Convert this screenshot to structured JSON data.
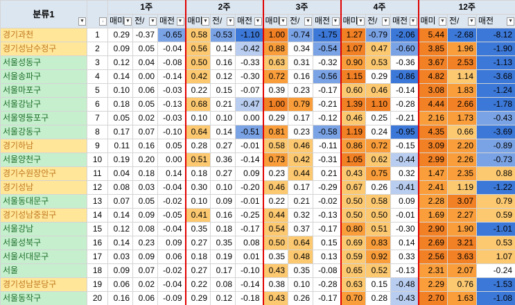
{
  "header": {
    "category_label": "분류1",
    "weeks": [
      "1주",
      "2주",
      "3주",
      "4주",
      "12주"
    ],
    "subcols": [
      "매매",
      "전세",
      "매전"
    ],
    "subcols_display": [
      "매미",
      "전/",
      "매전"
    ]
  },
  "colors": {
    "deep_orange": "#f28024",
    "orange": "#fa9e3b",
    "light_orange": "#fcc870",
    "pale_yellow": "#fde8a8",
    "deep_blue": "#3c78d8",
    "mid_blue": "#7aa3e6",
    "light_blue": "#b8cdf0",
    "header_bg": "#dce6f1",
    "yellow_name": "#ffe699",
    "green_name": "#c6efce"
  },
  "rows": [
    {
      "idx": "1",
      "name": "경기과천",
      "t": "y",
      "v": [
        "0.29",
        "-0.37",
        "-0.65",
        "0.58",
        "-0.53",
        "-1.10",
        "1.00",
        "-0.74",
        "-1.75",
        "1.27",
        "-0.79",
        "-2.06",
        "5.44",
        "-2.68",
        "-8.12"
      ]
    },
    {
      "idx": "2",
      "name": "경기성남수정구",
      "t": "y",
      "v": [
        "0.09",
        "0.05",
        "-0.04",
        "0.56",
        "0.14",
        "-0.42",
        "0.88",
        "0.34",
        "-0.54",
        "1.07",
        "0.47",
        "-0.60",
        "3.85",
        "1.96",
        "-1.90"
      ]
    },
    {
      "idx": "3",
      "name": "서울성동구",
      "t": "g",
      "v": [
        "0.12",
        "0.04",
        "-0.08",
        "0.50",
        "0.16",
        "-0.33",
        "0.63",
        "0.31",
        "-0.32",
        "0.90",
        "0.53",
        "-0.36",
        "3.67",
        "2.53",
        "-1.13"
      ]
    },
    {
      "idx": "4",
      "name": "서울송파구",
      "t": "g",
      "v": [
        "0.14",
        "0.00",
        "-0.14",
        "0.42",
        "0.12",
        "-0.30",
        "0.72",
        "0.16",
        "-0.56",
        "1.15",
        "0.29",
        "-0.86",
        "4.82",
        "1.14",
        "-3.68"
      ]
    },
    {
      "idx": "5",
      "name": "서울마포구",
      "t": "g",
      "v": [
        "0.10",
        "0.06",
        "-0.03",
        "0.22",
        "0.15",
        "-0.07",
        "0.39",
        "0.23",
        "-0.17",
        "0.60",
        "0.46",
        "-0.14",
        "3.08",
        "1.83",
        "-1.24"
      ]
    },
    {
      "idx": "6",
      "name": "서울강남구",
      "t": "g",
      "v": [
        "0.18",
        "0.05",
        "-0.13",
        "0.68",
        "0.21",
        "-0.47",
        "1.00",
        "0.79",
        "-0.21",
        "1.39",
        "1.10",
        "-0.28",
        "4.44",
        "2.66",
        "-1.78"
      ]
    },
    {
      "idx": "7",
      "name": "서울영등포구",
      "t": "g",
      "v": [
        "0.05",
        "0.02",
        "-0.03",
        "0.10",
        "0.10",
        "0.00",
        "0.29",
        "0.17",
        "-0.12",
        "0.46",
        "0.25",
        "-0.21",
        "2.16",
        "1.73",
        "-0.43"
      ]
    },
    {
      "idx": "8",
      "name": "서울강동구",
      "t": "g",
      "v": [
        "0.17",
        "0.07",
        "-0.10",
        "0.64",
        "0.14",
        "-0.51",
        "0.81",
        "0.23",
        "-0.58",
        "1.19",
        "0.24",
        "-0.95",
        "4.35",
        "0.66",
        "-3.69"
      ]
    },
    {
      "idx": "9",
      "name": "경기하남",
      "t": "y",
      "v": [
        "0.11",
        "0.16",
        "0.05",
        "0.28",
        "0.27",
        "-0.01",
        "0.58",
        "0.46",
        "-0.11",
        "0.86",
        "0.72",
        "-0.15",
        "3.09",
        "2.20",
        "-0.89"
      ]
    },
    {
      "idx": "10",
      "name": "서울양천구",
      "t": "g",
      "v": [
        "0.19",
        "0.20",
        "0.00",
        "0.51",
        "0.36",
        "-0.14",
        "0.73",
        "0.42",
        "-0.31",
        "1.05",
        "0.62",
        "-0.44",
        "2.99",
        "2.26",
        "-0.73"
      ]
    },
    {
      "idx": "11",
      "name": "경기수원장안구",
      "t": "y",
      "v": [
        "0.04",
        "0.18",
        "0.14",
        "0.18",
        "0.27",
        "0.09",
        "0.23",
        "0.44",
        "0.21",
        "0.43",
        "0.75",
        "0.32",
        "1.47",
        "2.35",
        "0.88"
      ]
    },
    {
      "idx": "12",
      "name": "경기성남",
      "t": "y",
      "v": [
        "0.08",
        "0.03",
        "-0.04",
        "0.30",
        "0.10",
        "-0.20",
        "0.46",
        "0.17",
        "-0.29",
        "0.67",
        "0.26",
        "-0.41",
        "2.41",
        "1.19",
        "-1.22"
      ]
    },
    {
      "idx": "13",
      "name": "서울동대문구",
      "t": "g",
      "v": [
        "0.07",
        "0.05",
        "-0.02",
        "0.10",
        "0.09",
        "-0.01",
        "0.22",
        "0.21",
        "-0.02",
        "0.50",
        "0.58",
        "0.09",
        "2.28",
        "3.07",
        "0.79"
      ]
    },
    {
      "idx": "14",
      "name": "경기성남중원구",
      "t": "y",
      "v": [
        "0.14",
        "0.09",
        "-0.05",
        "0.41",
        "0.16",
        "-0.25",
        "0.44",
        "0.32",
        "-0.13",
        "0.50",
        "0.50",
        "-0.01",
        "1.69",
        "2.27",
        "0.59"
      ]
    },
    {
      "idx": "15",
      "name": "서울강남",
      "t": "g",
      "v": [
        "0.12",
        "0.08",
        "-0.04",
        "0.35",
        "0.18",
        "-0.17",
        "0.54",
        "0.37",
        "-0.17",
        "0.80",
        "0.51",
        "-0.30",
        "2.90",
        "1.90",
        "-1.01"
      ]
    },
    {
      "idx": "16",
      "name": "서울성북구",
      "t": "g",
      "v": [
        "0.14",
        "0.23",
        "0.09",
        "0.27",
        "0.35",
        "0.08",
        "0.50",
        "0.64",
        "0.15",
        "0.69",
        "0.83",
        "0.14",
        "2.69",
        "3.21",
        "0.53"
      ]
    },
    {
      "idx": "17",
      "name": "서울서대문구",
      "t": "g",
      "v": [
        "0.03",
        "0.09",
        "0.06",
        "0.18",
        "0.19",
        "0.01",
        "0.35",
        "0.48",
        "0.13",
        "0.59",
        "0.92",
        "0.33",
        "2.56",
        "3.63",
        "1.07"
      ]
    },
    {
      "idx": "18",
      "name": "서울",
      "t": "g",
      "v": [
        "0.09",
        "0.07",
        "-0.02",
        "0.27",
        "0.17",
        "-0.10",
        "0.43",
        "0.35",
        "-0.08",
        "0.65",
        "0.52",
        "-0.13",
        "2.31",
        "2.07",
        "-0.24"
      ]
    },
    {
      "idx": "19",
      "name": "경기성남분당구",
      "t": "y",
      "v": [
        "0.06",
        "0.02",
        "-0.04",
        "0.22",
        "0.08",
        "-0.14",
        "0.38",
        "0.10",
        "-0.28",
        "0.63",
        "0.15",
        "-0.48",
        "2.29",
        "0.76",
        "-1.53"
      ]
    },
    {
      "idx": "20",
      "name": "서울동작구",
      "t": "g",
      "v": [
        "0.16",
        "0.06",
        "-0.09",
        "0.29",
        "0.12",
        "-0.18",
        "0.43",
        "0.26",
        "-0.17",
        "0.70",
        "0.28",
        "-0.43",
        "2.70",
        "1.63",
        "-1.08"
      ]
    }
  ]
}
